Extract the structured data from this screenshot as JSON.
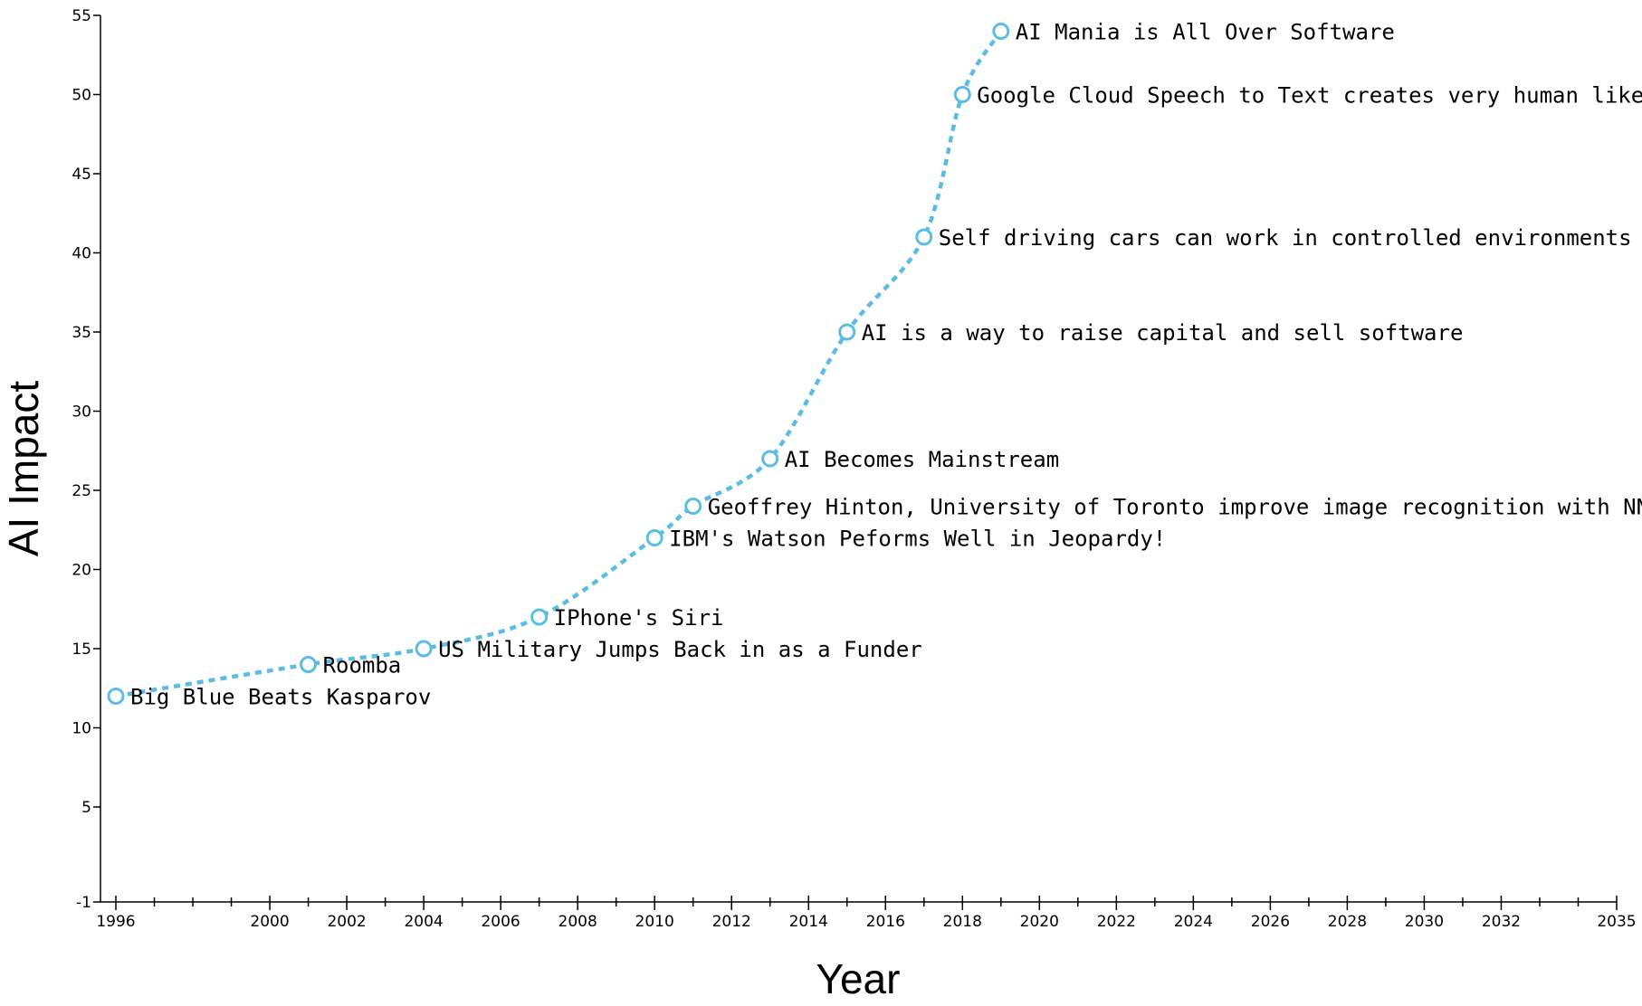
{
  "chart_data": {
    "type": "line",
    "title": "",
    "xlabel": "Year",
    "ylabel": "AI Impact",
    "xlim": [
      1995.6,
      2035
    ],
    "ylim": [
      -1,
      55
    ],
    "x_ticks": [
      1996,
      2000,
      2002,
      2004,
      2006,
      2008,
      2010,
      2012,
      2014,
      2016,
      2018,
      2020,
      2022,
      2024,
      2026,
      2028,
      2030,
      2032,
      2035
    ],
    "x_minor_ticks": [
      1997,
      1998,
      1999,
      2001,
      2003,
      2005,
      2007,
      2009,
      2011,
      2013,
      2015,
      2017,
      2019,
      2021,
      2023,
      2025,
      2027,
      2029,
      2031,
      2033,
      2034
    ],
    "y_ticks": [
      -1,
      5,
      10,
      15,
      20,
      25,
      30,
      35,
      40,
      45,
      50,
      55
    ],
    "grid": false,
    "legend": "none",
    "color": "#5bbde4",
    "line_style": "dashed",
    "series": [
      {
        "points": [
          {
            "x": 1996,
            "y": 12,
            "label": "Big Blue Beats Kasparov"
          },
          {
            "x": 2001,
            "y": 14,
            "label": "Roomba"
          },
          {
            "x": 2004,
            "y": 15,
            "label": "US Military Jumps Back in as a Funder"
          },
          {
            "x": 2007,
            "y": 17,
            "label": "IPhone's Siri"
          },
          {
            "x": 2010,
            "y": 22,
            "label": "IBM's Watson Peforms Well in Jeopardy!"
          },
          {
            "x": 2011,
            "y": 24,
            "label": "Geoffrey Hinton, University of Toronto improve image recognition with NN"
          },
          {
            "x": 2013,
            "y": 27,
            "label": "AI Becomes Mainstream"
          },
          {
            "x": 2015,
            "y": 35,
            "label": "AI is a way to raise capital and sell software"
          },
          {
            "x": 2017,
            "y": 41,
            "label": "Self driving cars can work in controlled environments"
          },
          {
            "x": 2018,
            "y": 50,
            "label": "Google Cloud Speech to Text creates very human like"
          },
          {
            "x": 2019,
            "y": 54,
            "label": "AI Mania is All Over Software"
          }
        ]
      }
    ]
  }
}
